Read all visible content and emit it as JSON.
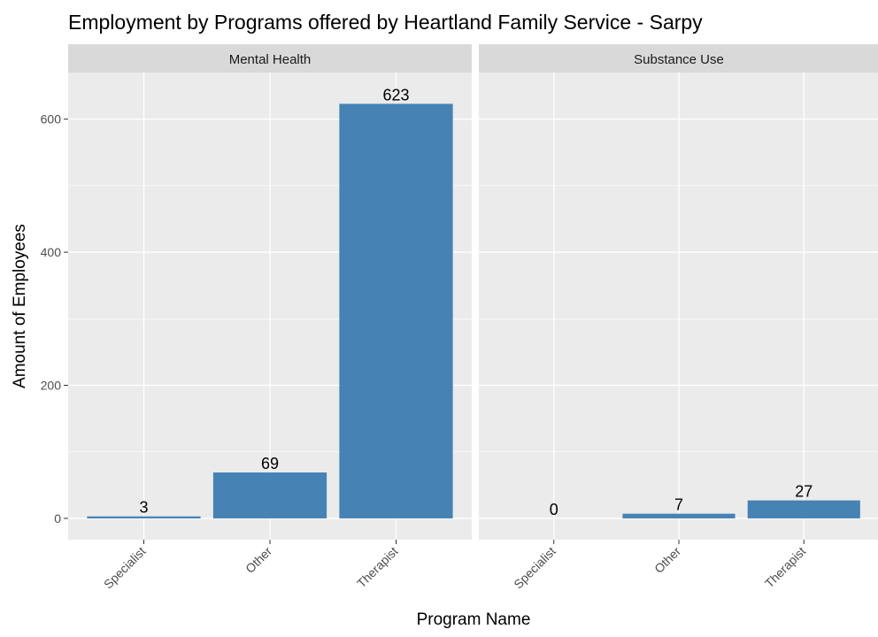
{
  "chart_data": {
    "type": "bar",
    "title": "Employment by Programs offered by Heartland Family Service - Sarpy",
    "xlabel": "Program Name",
    "ylabel": "Amount of Employees",
    "categories": [
      "Specialist",
      "Other",
      "Therapist"
    ],
    "ylim": [
      -32,
      670
    ],
    "yticks": [
      0,
      200,
      400,
      600
    ],
    "grid": true,
    "legend": "none",
    "bar_color": "#4682B4",
    "panel_background": "#EBEBEB",
    "strip_background": "#D9D9D9",
    "facets": [
      {
        "label": "Mental Health",
        "values": [
          3,
          69,
          623
        ]
      },
      {
        "label": "Substance Use",
        "values": [
          0,
          7,
          27
        ]
      }
    ]
  }
}
